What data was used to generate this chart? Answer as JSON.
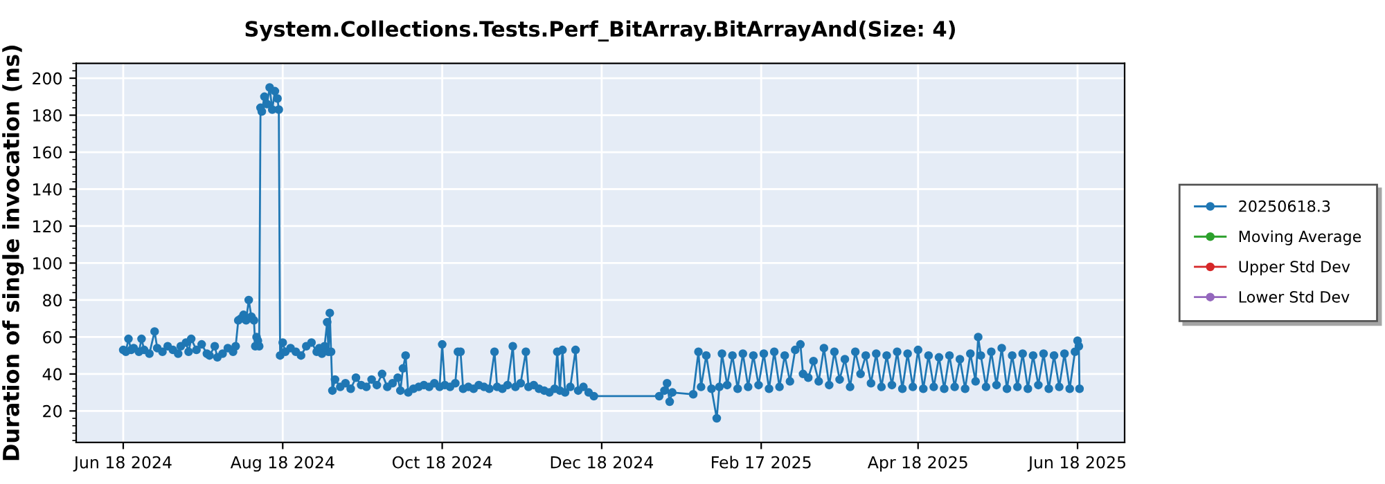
{
  "chart_data": {
    "type": "line",
    "title": "System.Collections.Tests.Perf_BitArray.BitArrayAnd(Size: 4)",
    "ylabel": "Duration of single invocation (ns)",
    "xlim": [
      "2024-05-31",
      "2025-07-06"
    ],
    "xticks": [
      {
        "value": "2024-06-18",
        "label": "Jun 18 2024"
      },
      {
        "value": "2024-08-18",
        "label": "Aug 18 2024"
      },
      {
        "value": "2024-10-18",
        "label": "Oct 18 2024"
      },
      {
        "value": "2024-12-18",
        "label": "Dec 18 2024"
      },
      {
        "value": "2025-02-17",
        "label": "Feb 17 2025"
      },
      {
        "value": "2025-04-18",
        "label": "Apr 18 2025"
      },
      {
        "value": "2025-06-18",
        "label": "Jun 18 2025"
      }
    ],
    "ylim": [
      3,
      208
    ],
    "yticks": [
      20,
      40,
      60,
      80,
      100,
      120,
      140,
      160,
      180,
      200
    ],
    "grid": true,
    "legend": "right",
    "marker": "circle",
    "line_style": "solid",
    "series": [
      {
        "name": "20250618.3",
        "color": "#1f77b4",
        "x": [
          "2024-06-18",
          "2024-06-19",
          "2024-06-20",
          "2024-06-21",
          "2024-06-22",
          "2024-06-24",
          "2024-06-25",
          "2024-06-26",
          "2024-06-28",
          "2024-06-30",
          "2024-07-01",
          "2024-07-03",
          "2024-07-05",
          "2024-07-07",
          "2024-07-09",
          "2024-07-10",
          "2024-07-12",
          "2024-07-13",
          "2024-07-14",
          "2024-07-16",
          "2024-07-18",
          "2024-07-20",
          "2024-07-21",
          "2024-07-23",
          "2024-07-24",
          "2024-07-26",
          "2024-07-28",
          "2024-07-30",
          "2024-07-31",
          "2024-08-01",
          "2024-08-02",
          "2024-08-03",
          "2024-08-04",
          "2024-08-05",
          "2024-08-06",
          "2024-08-07",
          "2024-08-07T12:00",
          "2024-08-08",
          "2024-08-08T12:00",
          "2024-08-09",
          "2024-08-09T12:00",
          "2024-08-10",
          "2024-08-11",
          "2024-08-12",
          "2024-08-13",
          "2024-08-14",
          "2024-08-15",
          "2024-08-16",
          "2024-08-16T12:00",
          "2024-08-17",
          "2024-08-18",
          "2024-08-19",
          "2024-08-21",
          "2024-08-23",
          "2024-08-25",
          "2024-08-27",
          "2024-08-29",
          "2024-08-31",
          "2024-09-01",
          "2024-09-02",
          "2024-09-03",
          "2024-09-04",
          "2024-09-04T12:00",
          "2024-09-05",
          "2024-09-05T12:00",
          "2024-09-06",
          "2024-09-07",
          "2024-09-09",
          "2024-09-11",
          "2024-09-13",
          "2024-09-15",
          "2024-09-17",
          "2024-09-19",
          "2024-09-21",
          "2024-09-23",
          "2024-09-25",
          "2024-09-27",
          "2024-09-29",
          "2024-10-01",
          "2024-10-02",
          "2024-10-03",
          "2024-10-04",
          "2024-10-05",
          "2024-10-07",
          "2024-10-09",
          "2024-10-11",
          "2024-10-13",
          "2024-10-15",
          "2024-10-17",
          "2024-10-18",
          "2024-10-19",
          "2024-10-21",
          "2024-10-23",
          "2024-10-24",
          "2024-10-25",
          "2024-10-26",
          "2024-10-28",
          "2024-10-30",
          "2024-11-01",
          "2024-11-03",
          "2024-11-05",
          "2024-11-07",
          "2024-11-08",
          "2024-11-10",
          "2024-11-12",
          "2024-11-14",
          "2024-11-15",
          "2024-11-17",
          "2024-11-19",
          "2024-11-20",
          "2024-11-22",
          "2024-11-24",
          "2024-11-26",
          "2024-11-28",
          "2024-11-30",
          "2024-12-01",
          "2024-12-02",
          "2024-12-03",
          "2024-12-04",
          "2024-12-06",
          "2024-12-08",
          "2024-12-09",
          "2024-12-11",
          "2024-12-13",
          "2024-12-15",
          "2025-01-09",
          "2025-01-11",
          "2025-01-12",
          "2025-01-13",
          "2025-01-14",
          "2025-01-22",
          "2025-01-24",
          "2025-01-25",
          "2025-01-27",
          "2025-01-29",
          "2025-01-31",
          "2025-02-01",
          "2025-02-02",
          "2025-02-04",
          "2025-02-06",
          "2025-02-08",
          "2025-02-10",
          "2025-02-12",
          "2025-02-14",
          "2025-02-16",
          "2025-02-18",
          "2025-02-20",
          "2025-02-22",
          "2025-02-24",
          "2025-02-26",
          "2025-02-28",
          "2025-03-02",
          "2025-03-04",
          "2025-03-05",
          "2025-03-07",
          "2025-03-09",
          "2025-03-11",
          "2025-03-13",
          "2025-03-15",
          "2025-03-17",
          "2025-03-19",
          "2025-03-21",
          "2025-03-23",
          "2025-03-25",
          "2025-03-27",
          "2025-03-29",
          "2025-03-31",
          "2025-04-02",
          "2025-04-04",
          "2025-04-06",
          "2025-04-08",
          "2025-04-10",
          "2025-04-12",
          "2025-04-14",
          "2025-04-16",
          "2025-04-18",
          "2025-04-20",
          "2025-04-22",
          "2025-04-24",
          "2025-04-26",
          "2025-04-28",
          "2025-04-30",
          "2025-05-02",
          "2025-05-04",
          "2025-05-06",
          "2025-05-08",
          "2025-05-10",
          "2025-05-11",
          "2025-05-12",
          "2025-05-14",
          "2025-05-16",
          "2025-05-18",
          "2025-05-20",
          "2025-05-22",
          "2025-05-24",
          "2025-05-26",
          "2025-05-28",
          "2025-05-30",
          "2025-06-01",
          "2025-06-03",
          "2025-06-05",
          "2025-06-07",
          "2025-06-09",
          "2025-06-11",
          "2025-06-13",
          "2025-06-15",
          "2025-06-17",
          "2025-06-18",
          "2025-06-18T12:00",
          "2025-06-18T18:00"
        ],
        "values": [
          53,
          52,
          59,
          53,
          54,
          52,
          59,
          53,
          51,
          63,
          54,
          52,
          55,
          53,
          51,
          55,
          57,
          52,
          59,
          53,
          56,
          51,
          50,
          55,
          49,
          51,
          54,
          52,
          55,
          69,
          70,
          72,
          69,
          80,
          71,
          69,
          55,
          60,
          58,
          55,
          184,
          182,
          190,
          186,
          195,
          183,
          193,
          189,
          183,
          50,
          57,
          52,
          54,
          52,
          50,
          55,
          57,
          52,
          54,
          51,
          55,
          68,
          52,
          73,
          52,
          31,
          37,
          33,
          35,
          32,
          38,
          34,
          33,
          37,
          34,
          40,
          33,
          35,
          38,
          31,
          43,
          50,
          30,
          32,
          33,
          34,
          33,
          35,
          33,
          56,
          34,
          33,
          35,
          52,
          52,
          32,
          33,
          32,
          34,
          33,
          32,
          52,
          33,
          32,
          34,
          55,
          33,
          35,
          52,
          33,
          34,
          32,
          31,
          30,
          32,
          52,
          31,
          53,
          30,
          33,
          53,
          31,
          33,
          30,
          28,
          28,
          31,
          35,
          25,
          30,
          29,
          52,
          33,
          50,
          32,
          16,
          33,
          51,
          34,
          50,
          32,
          51,
          33,
          50,
          34,
          51,
          32,
          52,
          33,
          50,
          36,
          53,
          56,
          40,
          38,
          47,
          36,
          54,
          34,
          52,
          37,
          48,
          33,
          52,
          40,
          50,
          35,
          51,
          33,
          50,
          34,
          52,
          32,
          51,
          33,
          53,
          32,
          50,
          33,
          49,
          32,
          50,
          33,
          48,
          32,
          51,
          36,
          60,
          50,
          33,
          52,
          34,
          54,
          32,
          50,
          33,
          51,
          32,
          50,
          34,
          51,
          32,
          50,
          33,
          51,
          32,
          52,
          58,
          55,
          32
        ]
      },
      {
        "name": "Moving Average",
        "color": "#2ca02c"
      },
      {
        "name": "Upper Std Dev",
        "color": "#d62728"
      },
      {
        "name": "Lower Std Dev",
        "color": "#9467bd"
      }
    ]
  }
}
